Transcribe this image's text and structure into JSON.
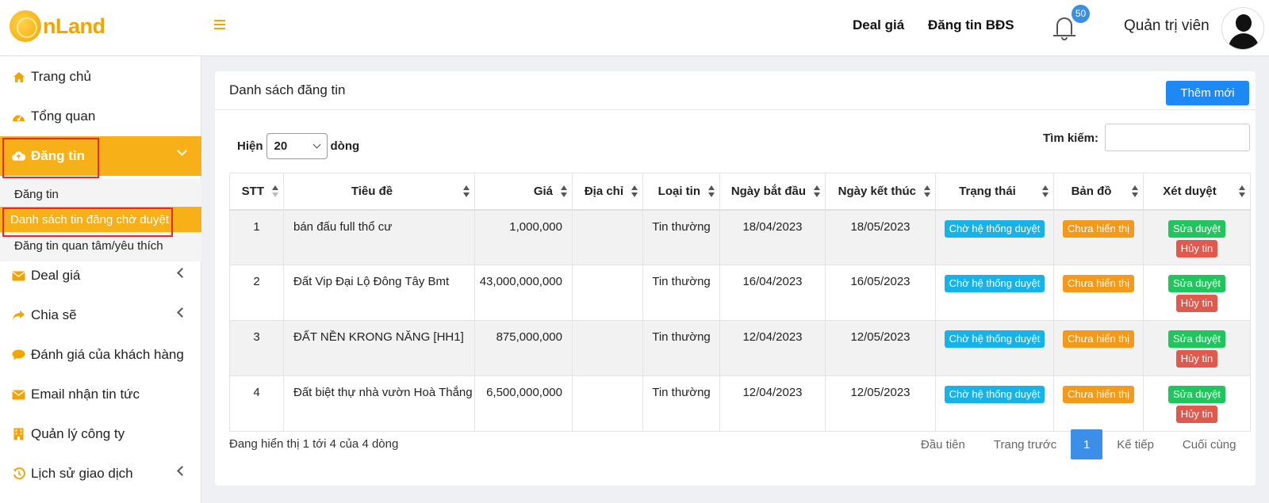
{
  "header": {
    "logo_text": "nLand",
    "links": [
      "Deal giá",
      "Đăng tin BĐS"
    ],
    "notification_count": "50",
    "user_name": "Quản trị viên"
  },
  "sidebar": {
    "items": [
      {
        "label": "Trang chủ",
        "icon": "home-icon"
      },
      {
        "label": "Tổng quan",
        "icon": "dashboard-icon"
      },
      {
        "label": "Đăng tin",
        "icon": "cloud-upload-icon"
      },
      {
        "label": "Deal giá",
        "icon": "envelope-icon"
      },
      {
        "label": "Chia sẽ",
        "icon": "share-icon"
      },
      {
        "label": "Đánh giá của khách hàng",
        "icon": "comment-icon"
      },
      {
        "label": "Email nhận tin tức",
        "icon": "envelope-icon"
      },
      {
        "label": "Quản lý công ty",
        "icon": "building-icon"
      },
      {
        "label": "Lịch sử giao dịch",
        "icon": "history-icon"
      }
    ],
    "submenu": [
      "Đăng tin",
      "Danh sách tin đăng chờ duyệt",
      "Đăng tin quan tâm/yêu thích"
    ]
  },
  "main": {
    "title": "Danh sách đăng tin",
    "add_button": "Thêm mới",
    "show_label": "Hiện",
    "show_value": "20",
    "rows_label": "dòng",
    "search_label": "Tìm kiếm:",
    "columns": [
      "STT",
      "Tiêu đề",
      "Giá",
      "Địa chỉ",
      "Loại tin",
      "Ngày bắt đầu",
      "Ngày kết thúc",
      "Trạng thái",
      "Bản đồ",
      "Xét duyệt"
    ],
    "rows": [
      {
        "stt": "1",
        "title": "bán đấu full thổ cư",
        "price": "1,000,000",
        "address": "",
        "type": "Tin thường",
        "start": "18/04/2023",
        "end": "18/05/2023",
        "status": "Chờ hệ thống duyệt",
        "map": "Chưa hiển thị",
        "approve": "Sửa duyệt",
        "cancel": "Hủy tin"
      },
      {
        "stt": "2",
        "title": "Đất Vip Đại Lộ Đông Tây Bmt",
        "price": "43,000,000,000",
        "address": "",
        "type": "Tin thường",
        "start": "16/04/2023",
        "end": "16/05/2023",
        "status": "Chờ hệ thống duyệt",
        "map": "Chưa hiển thị",
        "approve": "Sửa duyệt",
        "cancel": "Hủy tin"
      },
      {
        "stt": "3",
        "title": "ĐẤT NỀN KRONG NĂNG [HH1]",
        "price": "875,000,000",
        "address": "",
        "type": "Tin thường",
        "start": "12/04/2023",
        "end": "12/05/2023",
        "status": "Chờ hệ thống duyệt",
        "map": "Chưa hiển thị",
        "approve": "Sửa duyệt",
        "cancel": "Hủy tin"
      },
      {
        "stt": "4",
        "title": "Đất biệt thự nhà vườn Hoà Thắng",
        "price": "6,500,000,000",
        "address": "",
        "type": "Tin thường",
        "start": "12/04/2023",
        "end": "12/05/2023",
        "status": "Chờ hệ thống duyệt",
        "map": "Chưa hiển thị",
        "approve": "Sửa duyệt",
        "cancel": "Hủy tin"
      }
    ],
    "info": "Đang hiển thị 1 tới 4 của 4 dòng",
    "pager": {
      "first": "Đầu tiên",
      "prev": "Trang trước",
      "current": "1",
      "next": "Kế tiếp",
      "last": "Cuối cùng"
    }
  },
  "colors": {
    "accent": "#f7b017",
    "primary": "#1e88f4",
    "highlight_box": "#e52b2b"
  }
}
